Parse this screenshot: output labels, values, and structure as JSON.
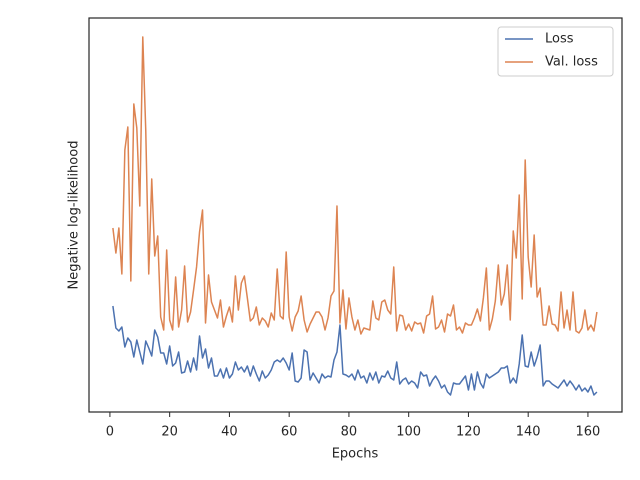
{
  "chart_data": {
    "type": "line",
    "xlabel": "Epochs",
    "ylabel": "Negative log-likelihood",
    "xlim": [
      -7,
      171.4
    ],
    "xticks": [
      0,
      20,
      40,
      60,
      80,
      100,
      120,
      140,
      160
    ],
    "ylim": [
      0,
      394
    ],
    "legend": "upper right",
    "x": [
      1,
      2,
      3,
      4,
      5,
      6,
      7,
      8,
      9,
      10,
      11,
      12,
      13,
      14,
      15,
      16,
      17,
      18,
      19,
      20,
      21,
      22,
      23,
      24,
      25,
      26,
      27,
      28,
      29,
      30,
      31,
      32,
      33,
      34,
      35,
      36,
      37,
      38,
      39,
      40,
      41,
      42,
      43,
      44,
      45,
      46,
      47,
      48,
      49,
      50,
      51,
      52,
      53,
      54,
      55,
      56,
      57,
      58,
      59,
      60,
      61,
      62,
      63,
      64,
      65,
      66,
      67,
      68,
      69,
      70,
      71,
      72,
      73,
      74,
      75,
      76,
      77,
      78,
      79,
      80,
      81,
      82,
      83,
      84,
      85,
      86,
      87,
      88,
      89,
      90,
      91,
      92,
      93,
      94,
      95,
      96,
      97,
      98,
      99,
      100,
      101,
      102,
      103,
      104,
      105,
      106,
      107,
      108,
      109,
      110,
      111,
      112,
      113,
      114,
      115,
      116,
      117,
      118,
      119,
      120,
      121,
      122,
      123,
      124,
      125,
      126,
      127,
      128,
      129,
      130,
      131,
      132,
      133,
      134,
      135,
      136,
      137,
      138,
      139,
      140,
      141,
      142,
      143,
      144,
      145,
      146,
      147,
      148,
      149,
      150,
      151,
      152,
      153,
      154,
      155,
      156,
      157,
      158,
      159,
      160,
      161,
      162,
      163
    ],
    "series": [
      {
        "name": "Loss",
        "color": "#4c72b0",
        "values": [
          106,
          84,
          81,
          85,
          65,
          74,
          70,
          55,
          72,
          60,
          48,
          71,
          64,
          56,
          82,
          75,
          59,
          59,
          48,
          66,
          46,
          49,
          60,
          39,
          40,
          51,
          40,
          54,
          42,
          76,
          54,
          63,
          44,
          54,
          36,
          36,
          43,
          34,
          44,
          34,
          38,
          50,
          42,
          45,
          40,
          46,
          36,
          46,
          38,
          31,
          41,
          34,
          37,
          42,
          50,
          52,
          50,
          54,
          49,
          42,
          59,
          31,
          30,
          34,
          62,
          60,
          32,
          39,
          34,
          29,
          38,
          34,
          36,
          35,
          52,
          60,
          87,
          38,
          37,
          35,
          38,
          32,
          42,
          34,
          36,
          29,
          39,
          32,
          40,
          29,
          36,
          35,
          41,
          34,
          32,
          50,
          28,
          32,
          34,
          28,
          31,
          29,
          24,
          40,
          36,
          37,
          26,
          32,
          36,
          31,
          24,
          27,
          20,
          17,
          29,
          28,
          28,
          32,
          36,
          22,
          38,
          22,
          40,
          29,
          24,
          38,
          34,
          36,
          38,
          40,
          44,
          44,
          46,
          29,
          34,
          29,
          48,
          77,
          46,
          45,
          60,
          46,
          55,
          67,
          26,
          31,
          31,
          28,
          26,
          24,
          28,
          32,
          26,
          31,
          27,
          22,
          27,
          21,
          24,
          20,
          26,
          17,
          20
        ]
      },
      {
        "name": "Val. loss",
        "color": "#dd8452",
        "values": [
          184,
          159,
          184,
          138,
          262,
          285,
          131,
          308,
          284,
          206,
          375,
          281,
          138,
          233,
          156,
          176,
          95,
          82,
          162,
          92,
          82,
          135,
          85,
          102,
          146,
          90,
          100,
          122,
          145,
          180,
          202,
          89,
          137,
          110,
          102,
          94,
          112,
          85,
          96,
          105,
          90,
          136,
          102,
          129,
          136,
          114,
          91,
          94,
          105,
          87,
          94,
          91,
          85,
          99,
          92,
          143,
          96,
          93,
          160,
          95,
          81,
          95,
          101,
          116,
          92,
          80,
          88,
          94,
          100,
          100,
          95,
          82,
          94,
          116,
          121,
          206,
          89,
          122,
          83,
          114,
          95,
          82,
          92,
          78,
          84,
          83,
          82,
          111,
          94,
          92,
          110,
          112,
          102,
          98,
          145,
          81,
          97,
          96,
          82,
          88,
          81,
          90,
          88,
          89,
          79,
          96,
          98,
          116,
          83,
          85,
          92,
          80,
          98,
          96,
          107,
          82,
          85,
          79,
          89,
          87,
          87,
          94,
          103,
          91,
          114,
          144,
          82,
          93,
          111,
          147,
          107,
          118,
          147,
          92,
          181,
          154,
          217,
          113,
          252,
          155,
          125,
          177,
          115,
          124,
          87,
          87,
          106,
          88,
          87,
          81,
          120,
          84,
          102,
          82,
          120,
          81,
          79,
          84,
          102,
          82,
          87,
          81,
          100
        ]
      }
    ]
  }
}
